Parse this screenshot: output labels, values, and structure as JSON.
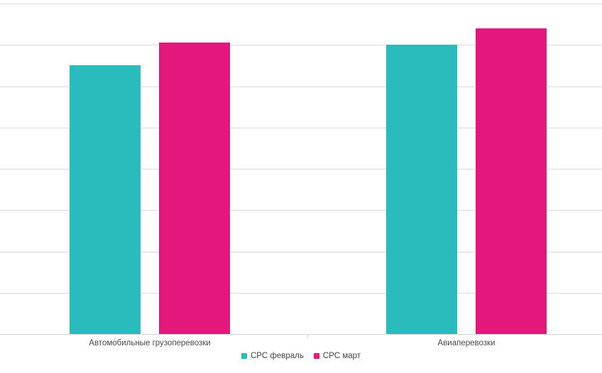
{
  "chart_data": {
    "type": "bar",
    "title": "",
    "categories": [
      "Автомобильные грузоперевозки",
      "Авиаперевозки"
    ],
    "series": [
      {
        "name": "CPC февраль",
        "color": "#2abcbd",
        "values": [
          6.5,
          7.0
        ]
      },
      {
        "name": "CPC март",
        "color": "#e2187c",
        "values": [
          7.05,
          7.4
        ]
      }
    ],
    "xlabel": "",
    "ylabel": "",
    "ylim": [
      0,
      8
    ],
    "gridline_step": 1,
    "grid": "horizontal",
    "y_tick_labels_visible": false,
    "legend_position": "bottom-center",
    "colors": {
      "background": "#ffffff",
      "gridline": "#dbdbdb",
      "axis_line": "#d3d3d3",
      "label_text": "#4a4a4a"
    }
  }
}
